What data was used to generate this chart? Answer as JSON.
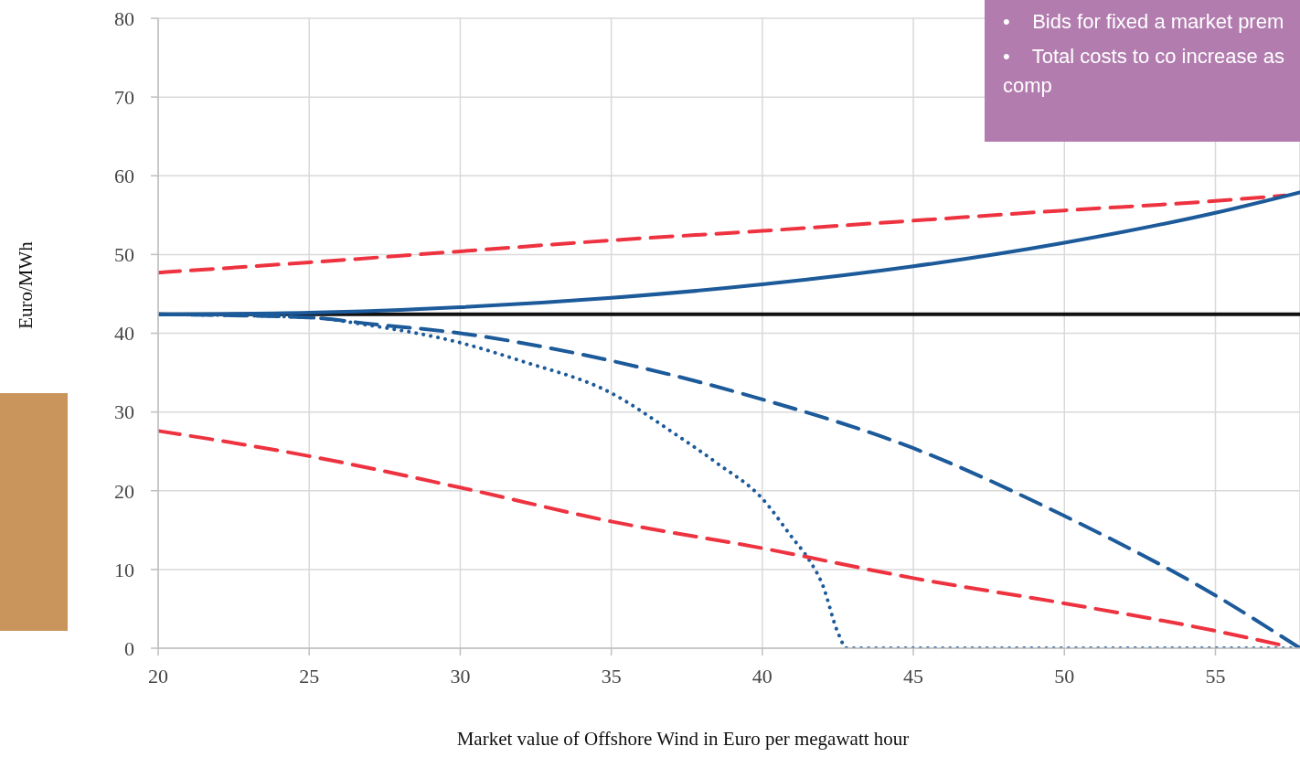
{
  "chart_data": {
    "type": "line",
    "xlabel": "Market value of Offshore Wind in Euro per megawatt hour",
    "ylabel": "Euro/MWh",
    "annotations": [
      "•    Bids for fixed a market prem",
      "•    Total costs to co increase as comp"
    ],
    "ref_lines": [
      {
        "axis": "y",
        "value": 42.4,
        "color": "#111111"
      }
    ],
    "xlim": [
      20,
      57.8
    ],
    "xticks": [
      20,
      25,
      30,
      35,
      40,
      45,
      50,
      55
    ],
    "ylim": [
      0,
      80
    ],
    "yticks": [
      0,
      10,
      20,
      30,
      40,
      50,
      60,
      70,
      80
    ],
    "grid": true,
    "series": [
      {
        "color": "#ee3340",
        "line_style": "dashed",
        "x": [
          20,
          25,
          30,
          35,
          40,
          45,
          50,
          55,
          57.3
        ],
        "values": [
          47.7,
          49.0,
          50.4,
          51.8,
          53.0,
          54.3,
          55.6,
          56.8,
          57.5
        ]
      },
      {
        "color": "#1c5a9a",
        "line_style": "solid",
        "x": [
          20,
          25,
          30,
          35,
          40,
          45,
          50,
          55,
          57.8
        ],
        "values": [
          42.4,
          42.6,
          43.3,
          44.5,
          46.2,
          48.5,
          51.5,
          55.3,
          57.9
        ]
      },
      {
        "color": "#1c5a9a",
        "line_style": "dashed",
        "x": [
          20,
          25,
          27,
          30,
          35,
          40,
          45,
          50,
          55,
          57.8
        ],
        "values": [
          42.4,
          42.0,
          41.2,
          40.0,
          36.5,
          31.6,
          25.4,
          16.8,
          6.7,
          0
        ]
      },
      {
        "color": "#1c5a9a",
        "line_style": "dotted",
        "x": [
          20,
          25,
          27,
          30,
          32,
          35,
          37,
          38.5,
          40,
          41,
          41.5,
          42,
          42.5,
          42.8,
          57.6
        ],
        "values": [
          42.4,
          42.0,
          41.0,
          38.8,
          36.5,
          32.4,
          27.5,
          23.5,
          19.0,
          14.0,
          11.5,
          8.0,
          2.0,
          0,
          0
        ]
      },
      {
        "color": "#ee3340",
        "line_style": "dashed",
        "x": [
          20,
          25,
          30,
          35,
          40,
          45,
          50,
          55,
          57.3
        ],
        "values": [
          27.6,
          24.4,
          20.4,
          16.1,
          12.7,
          8.9,
          5.7,
          2.2,
          0.3
        ]
      }
    ]
  }
}
